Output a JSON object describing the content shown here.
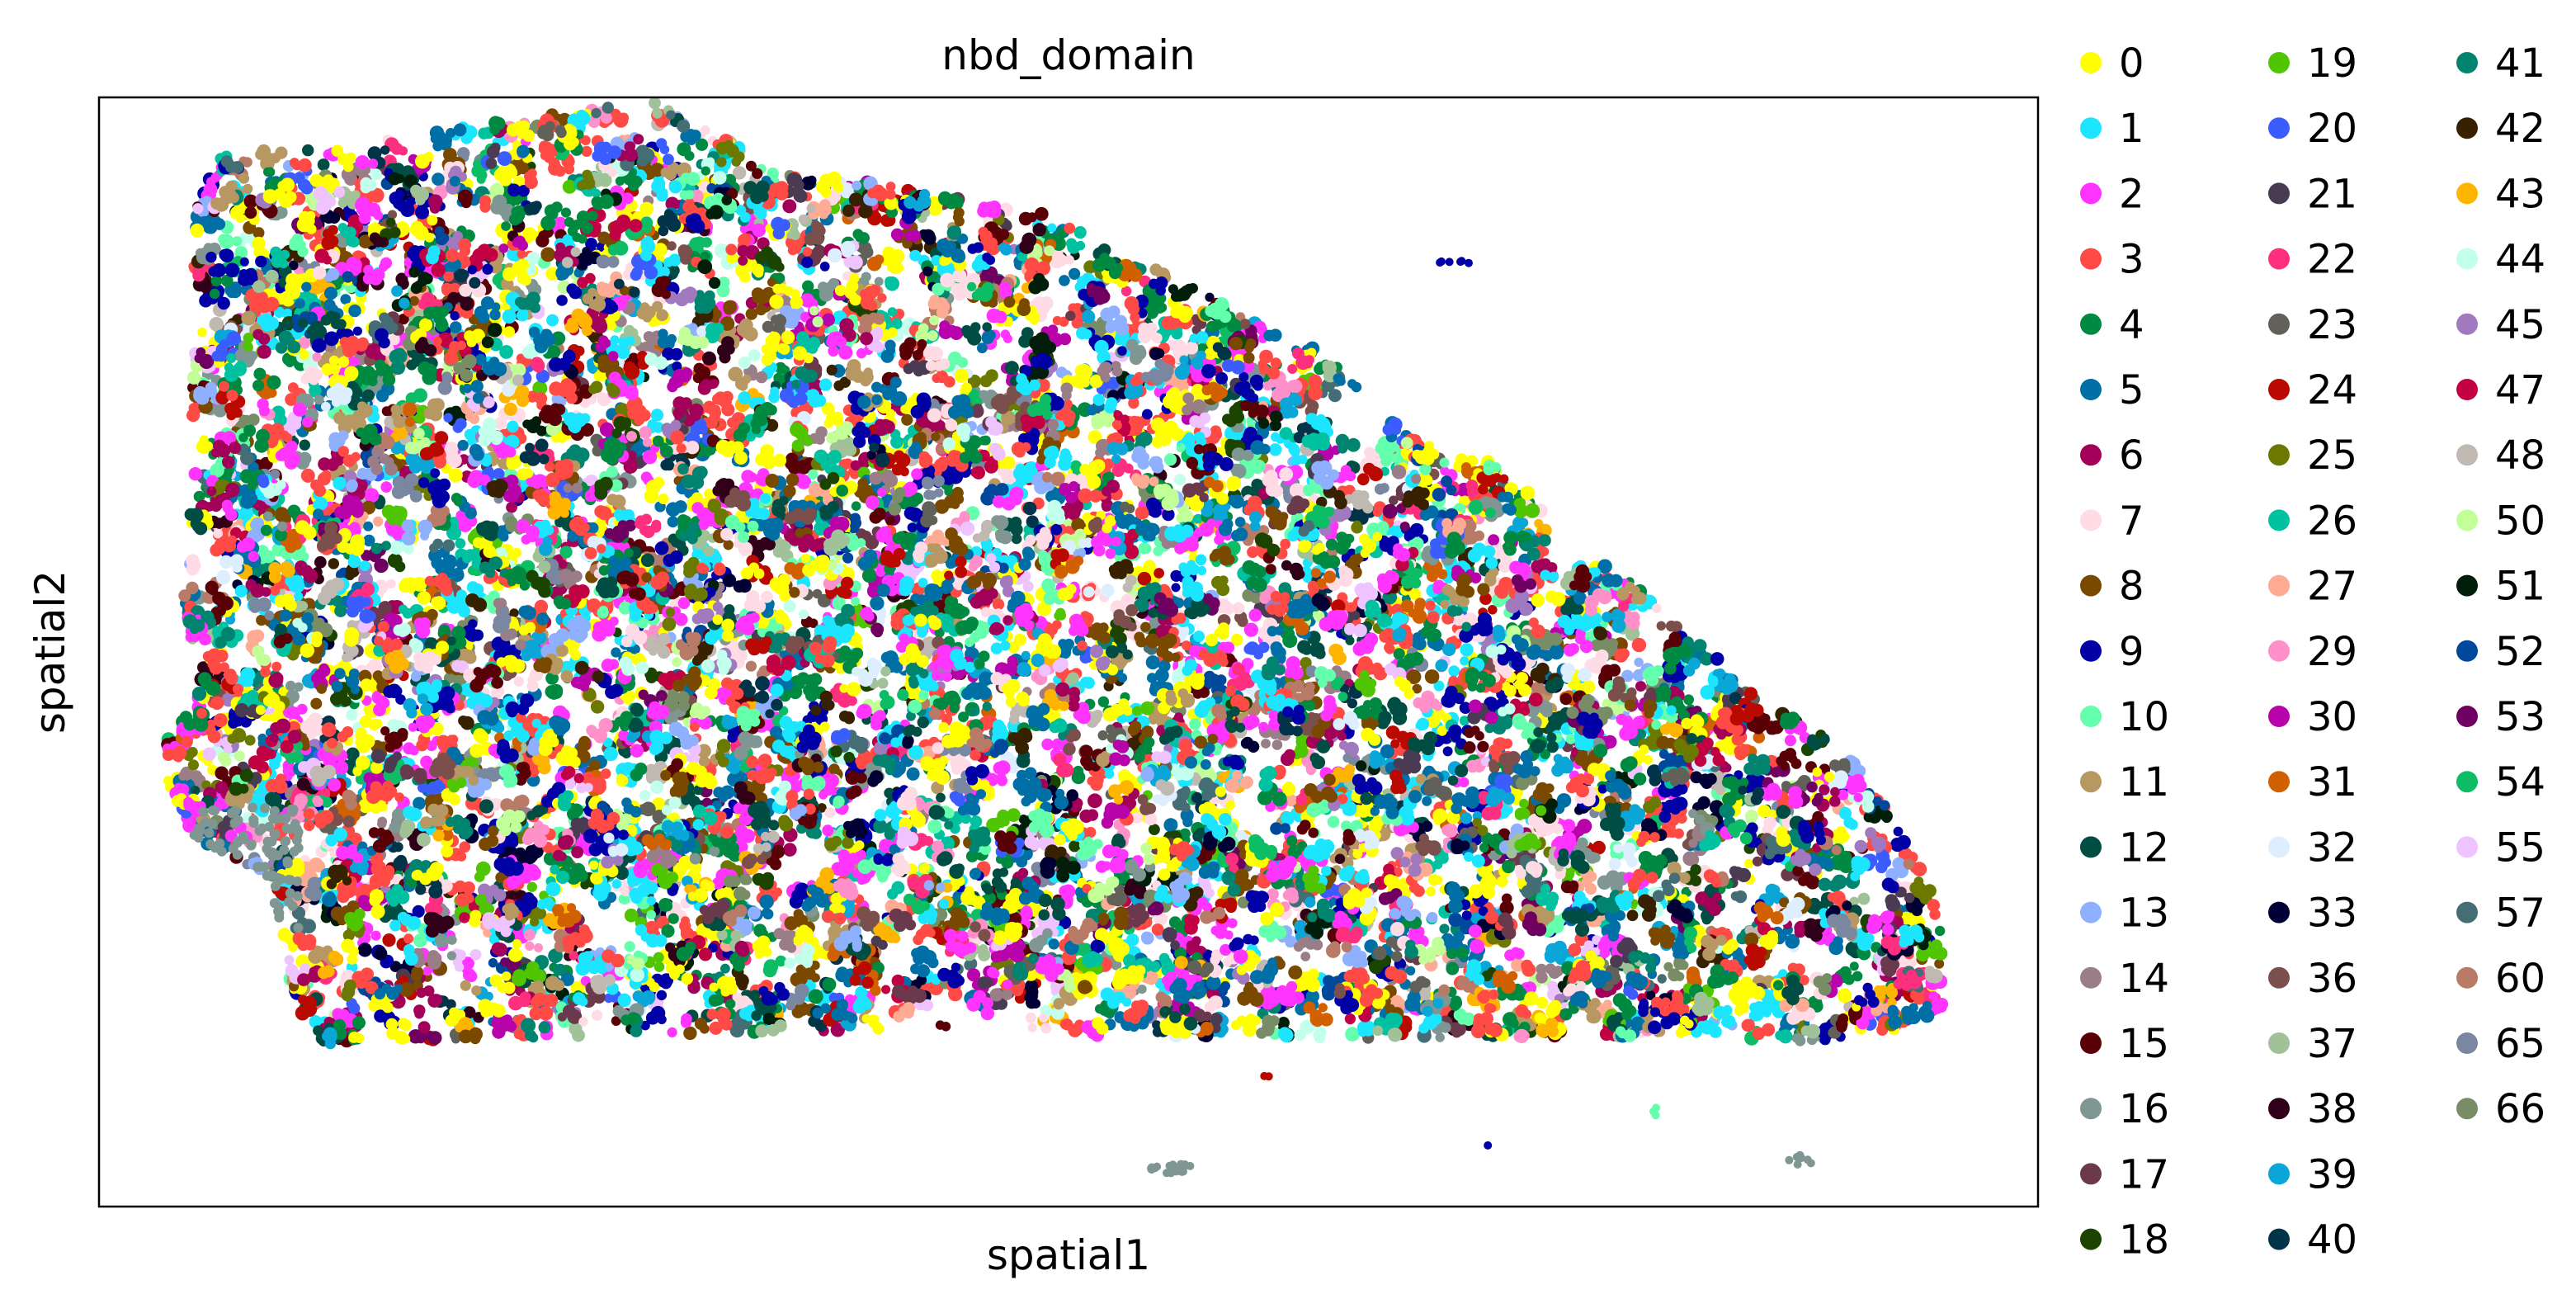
{
  "chart_data": {
    "type": "scatter",
    "title": "nbd_domain",
    "xlabel": "spatial1",
    "ylabel": "spatial2",
    "grid": false,
    "ticks_shown": false,
    "legend_placement": "right, outside plot (3 columns)",
    "xlim": [
      0,
      1000
    ],
    "ylim": [
      0,
      1000
    ],
    "legend": [
      {
        "label": "0",
        "color": "#ffff00"
      },
      {
        "label": "1",
        "color": "#1ce6ff"
      },
      {
        "label": "2",
        "color": "#ff34ff"
      },
      {
        "label": "3",
        "color": "#ff4a46"
      },
      {
        "label": "4",
        "color": "#008941"
      },
      {
        "label": "5",
        "color": "#006fa6"
      },
      {
        "label": "6",
        "color": "#a30059"
      },
      {
        "label": "7",
        "color": "#ffdbe5"
      },
      {
        "label": "8",
        "color": "#7a4900"
      },
      {
        "label": "9",
        "color": "#0000a6"
      },
      {
        "label": "10",
        "color": "#63ffac"
      },
      {
        "label": "11",
        "color": "#b79762"
      },
      {
        "label": "12",
        "color": "#004d43"
      },
      {
        "label": "13",
        "color": "#8fb0ff"
      },
      {
        "label": "14",
        "color": "#997d87"
      },
      {
        "label": "15",
        "color": "#5a0007"
      },
      {
        "label": "16",
        "color": "#809693"
      },
      {
        "label": "17",
        "color": "#6a3a4c"
      },
      {
        "label": "18",
        "color": "#1b4400"
      },
      {
        "label": "19",
        "color": "#4fc601"
      },
      {
        "label": "20",
        "color": "#3b5dff"
      },
      {
        "label": "21",
        "color": "#4a3b53"
      },
      {
        "label": "22",
        "color": "#ff2f80"
      },
      {
        "label": "23",
        "color": "#61615a"
      },
      {
        "label": "24",
        "color": "#ba0900"
      },
      {
        "label": "25",
        "color": "#6b7900"
      },
      {
        "label": "26",
        "color": "#00c2a0"
      },
      {
        "label": "27",
        "color": "#ffaa92"
      },
      {
        "label": "29",
        "color": "#ff90c9"
      },
      {
        "label": "30",
        "color": "#b903aa"
      },
      {
        "label": "31",
        "color": "#d16100"
      },
      {
        "label": "32",
        "color": "#ddefff"
      },
      {
        "label": "33",
        "color": "#000035"
      },
      {
        "label": "36",
        "color": "#7b4f4b"
      },
      {
        "label": "37",
        "color": "#a1c299"
      },
      {
        "label": "38",
        "color": "#300018"
      },
      {
        "label": "39",
        "color": "#0aa6d8"
      },
      {
        "label": "40",
        "color": "#013349"
      },
      {
        "label": "41",
        "color": "#00846f"
      },
      {
        "label": "42",
        "color": "#372101"
      },
      {
        "label": "43",
        "color": "#ffb500"
      },
      {
        "label": "44",
        "color": "#c2ffed"
      },
      {
        "label": "45",
        "color": "#a079bf"
      },
      {
        "label": "47",
        "color": "#c20044"
      },
      {
        "label": "48",
        "color": "#c0b9b2"
      },
      {
        "label": "50",
        "color": "#c2ff99"
      },
      {
        "label": "51",
        "color": "#001e09"
      },
      {
        "label": "52",
        "color": "#00489c"
      },
      {
        "label": "53",
        "color": "#6f0062"
      },
      {
        "label": "54",
        "color": "#0cbd66"
      },
      {
        "label": "55",
        "color": "#eec3ff"
      },
      {
        "label": "57",
        "color": "#456d75"
      },
      {
        "label": "60",
        "color": "#b77b68"
      },
      {
        "label": "65",
        "color": "#7a87a1"
      },
      {
        "label": "66",
        "color": "#788d66"
      }
    ],
    "outline": [
      [
        60,
        53
      ],
      [
        220,
        19
      ],
      [
        260,
        8
      ],
      [
        295,
        4
      ],
      [
        345,
        60
      ],
      [
        487,
        105
      ],
      [
        627,
        224
      ],
      [
        676,
        307
      ],
      [
        728,
        335
      ],
      [
        760,
        405
      ],
      [
        792,
        437
      ],
      [
        820,
        482
      ],
      [
        847,
        517
      ],
      [
        909,
        603
      ],
      [
        949,
        717
      ],
      [
        951,
        822
      ],
      [
        922,
        847
      ],
      [
        880,
        851
      ],
      [
        817,
        845
      ],
      [
        735,
        848
      ],
      [
        585,
        848
      ],
      [
        383,
        842
      ],
      [
        240,
        847
      ],
      [
        145,
        854
      ],
      [
        112,
        856
      ],
      [
        98,
        799
      ],
      [
        88,
        703
      ],
      [
        49,
        667
      ],
      [
        35,
        617
      ],
      [
        35,
        581
      ],
      [
        48,
        543
      ],
      [
        45,
        497
      ],
      [
        43,
        440
      ],
      [
        47,
        384
      ],
      [
        48,
        327
      ],
      [
        47,
        264
      ],
      [
        50,
        187
      ],
      [
        48,
        145
      ],
      [
        50,
        101
      ],
      [
        55,
        66
      ]
    ],
    "outliers": [
      {
        "label": "16",
        "x": 553,
        "y": 965,
        "rx": 13,
        "ry": 5,
        "n": 20
      },
      {
        "label": "16",
        "x": 879,
        "y": 958,
        "rx": 8,
        "ry": 5,
        "n": 8
      },
      {
        "label": "9",
        "x": 716,
        "y": 944,
        "rx": 1,
        "ry": 1,
        "n": 1
      },
      {
        "label": "24",
        "x": 602,
        "y": 882,
        "rx": 2,
        "ry": 1,
        "n": 2
      },
      {
        "label": "10",
        "x": 803,
        "y": 913,
        "rx": 2,
        "ry": 5,
        "n": 4
      },
      {
        "label": "9",
        "x": 699,
        "y": 149,
        "rx": 10,
        "ry": 2,
        "n": 6
      }
    ]
  }
}
